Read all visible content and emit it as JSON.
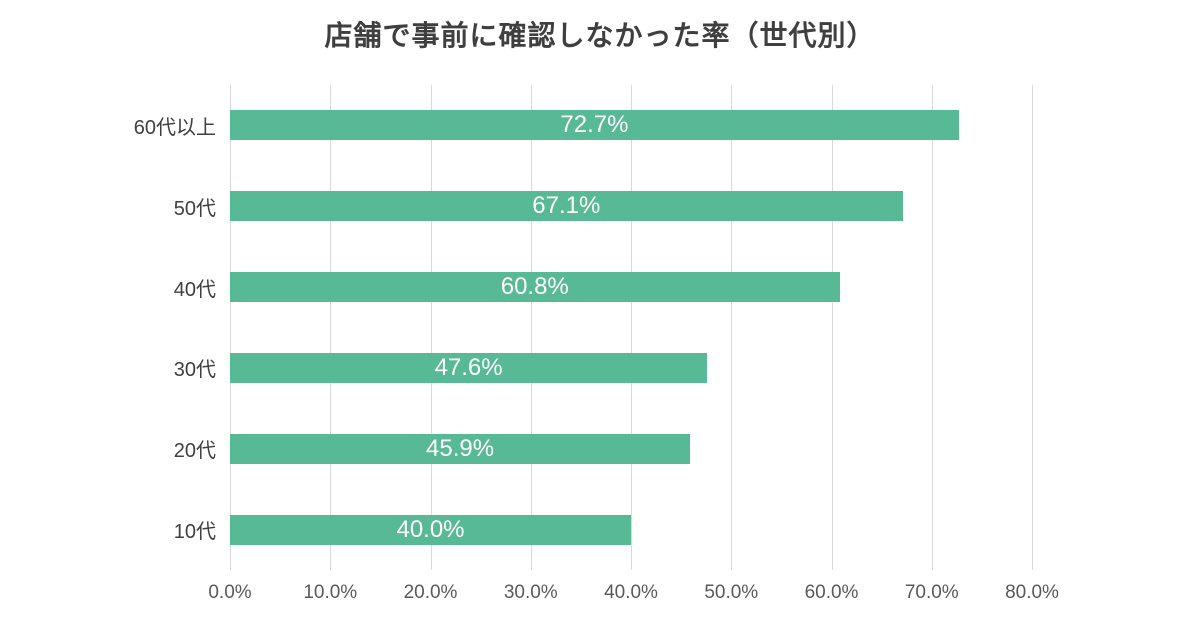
{
  "chart_data": {
    "type": "bar",
    "orientation": "horizontal",
    "title": "店舗で事前に確認しなかった率（世代別）",
    "categories": [
      "60代以上",
      "50代",
      "40代",
      "30代",
      "20代",
      "10代"
    ],
    "values": [
      72.7,
      67.1,
      60.8,
      47.6,
      45.9,
      40.0
    ],
    "value_labels": [
      "72.7%",
      "67.1%",
      "60.8%",
      "47.6%",
      "45.9%",
      "40.0%"
    ],
    "xlabel": "",
    "ylabel": "",
    "xlim": [
      0,
      80
    ],
    "x_ticks": [
      "0.0%",
      "10.0%",
      "20.0%",
      "30.0%",
      "40.0%",
      "50.0%",
      "60.0%",
      "70.0%",
      "80.0%"
    ],
    "grid": true,
    "legend": "none",
    "colors": {
      "bar": "#58b996",
      "grid": "#d9d9d9",
      "title": "#3f3f3f",
      "category_label": "#404040",
      "tick_label": "#595959",
      "value_label": "#ffffff",
      "background": "#ffffff"
    }
  }
}
